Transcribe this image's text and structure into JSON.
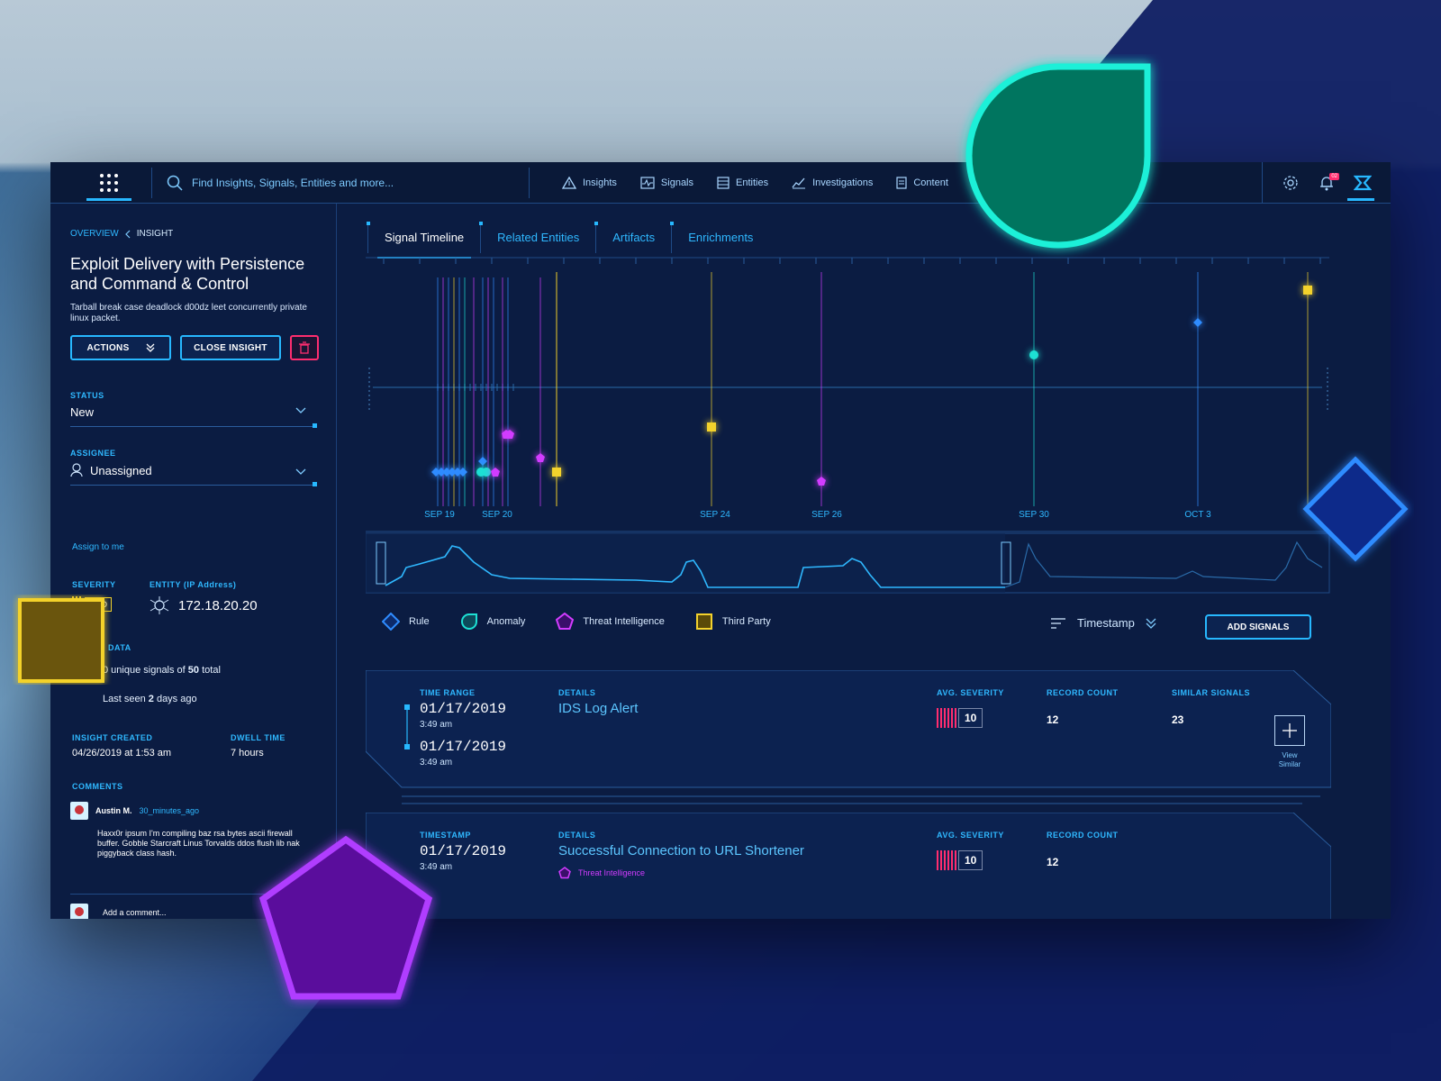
{
  "topbar": {
    "search_placeholder": "Find Insights, Signals, Entities and more...",
    "nav": [
      {
        "label": "Insights",
        "icon": "triangle-alert-icon"
      },
      {
        "label": "Signals",
        "icon": "signal-pulse-icon"
      },
      {
        "label": "Entities",
        "icon": "database-icon"
      },
      {
        "label": "Investigations",
        "icon": "chart-line-icon"
      },
      {
        "label": "Content",
        "icon": "document-icon"
      }
    ],
    "notification_count": "02"
  },
  "left": {
    "breadcrumb": {
      "parent": "OVERVIEW",
      "current": "INSIGHT"
    },
    "title": "Exploit Delivery with Persistence and Command & Control",
    "description": "Tarball break case deadlock d00dz leet concurrently private linux packet.",
    "actions_label": "ACTIONS",
    "close_label": "CLOSE INSIGHT",
    "status_label": "STATUS",
    "status_value": "New",
    "assignee_label": "ASSIGNEE",
    "assignee_value": "Unassigned",
    "assign_me": "Assign to me",
    "severity_label": "SEVERITY",
    "severity_value": "MED",
    "entity_label": "ENTITY (IP Address)",
    "entity_value": "172.18.20.20",
    "data_label": ". DATA",
    "data_unique_prefix": "0 unique signals of ",
    "data_total": "50",
    "data_unique_suffix": " total",
    "last_seen_prefix": "Last seen ",
    "last_seen_num": "2",
    "last_seen_suffix": " days ago",
    "insight_created_label": "INSIGHT CREATED",
    "insight_created_value": "04/26/2019 at 1:53 am",
    "dwell_label": "DWELL TIME",
    "dwell_value": "7 hours",
    "comments_label": "COMMENTS",
    "comment": {
      "author": "Austin M.",
      "time": "30_minutes_ago",
      "body": "Haxx0r ipsum I'm compiling baz rsa bytes ascii firewall buffer. Gobble Starcraft Linus Torvalds ddos flush lib nak piggyback class hash."
    },
    "add_comment_placeholder": "Add a comment..."
  },
  "tabs": [
    {
      "label": "Signal Timeline",
      "active": true
    },
    {
      "label": "Related Entities",
      "active": false
    },
    {
      "label": "Artifacts",
      "active": false
    },
    {
      "label": "Enrichments",
      "active": false
    }
  ],
  "chart_data": {
    "type": "scatter",
    "x_ticks": [
      "SEP 19",
      "SEP 20",
      "SEP 24",
      "SEP 26",
      "SEP 30",
      "OCT 3"
    ],
    "series": [
      {
        "name": "Rule",
        "color": "#2f8cff",
        "shape": "diamond"
      },
      {
        "name": "Anomaly",
        "color": "#1de0d4",
        "shape": "circle"
      },
      {
        "name": "Threat Intelligence",
        "color": "#d23cff",
        "shape": "pentagon"
      },
      {
        "name": "Third Party",
        "color": "#f3d22c",
        "shape": "square"
      }
    ]
  },
  "legend": [
    {
      "label": "Rule",
      "icon": "diamond-icon",
      "color": "#2f8cff"
    },
    {
      "label": "Anomaly",
      "icon": "drop-icon",
      "color": "#1de0d4"
    },
    {
      "label": "Threat Intelligence",
      "icon": "pentagon-icon",
      "color": "#d23cff"
    },
    {
      "label": "Third Party",
      "icon": "square-icon",
      "color": "#f3d22c"
    }
  ],
  "sort_label": "Timestamp",
  "add_signals_label": "ADD SIGNALS",
  "cards": [
    {
      "time_label": "TIME RANGE",
      "date1": "01/17/2019",
      "time1": "3:49 am",
      "date2": "01/17/2019",
      "time2": "3:49 am",
      "details_label": "DETAILS",
      "details": "IDS Log Alert",
      "avg_sev_label": "AVG. SEVERITY",
      "avg_sev": "10",
      "record_label": "RECORD COUNT",
      "record": "12",
      "similar_label": "SIMILAR SIGNALS",
      "similar": "23",
      "view_similar": "View Similar"
    },
    {
      "time_label": "TIMESTAMP",
      "date1": "01/17/2019",
      "time1": "3:49 am",
      "details_label": "DETAILS",
      "details": "Successful Connection to URL Shortener",
      "tag": "Threat Intelligence",
      "avg_sev_label": "AVG. SEVERITY",
      "avg_sev": "10",
      "record_label": "RECORD COUNT",
      "record": "12"
    }
  ]
}
